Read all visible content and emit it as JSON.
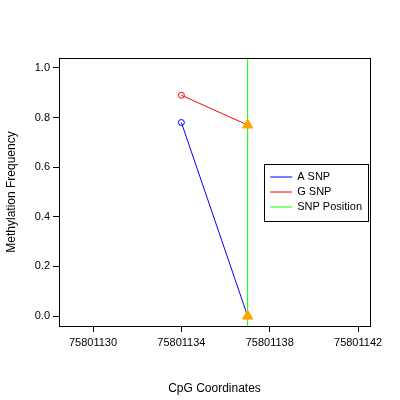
{
  "chart_data": {
    "type": "line",
    "x_label": "CpG Coordinates",
    "y_label": "Methylation Frequency",
    "xlim": [
      75801128.46,
      75801142.54
    ],
    "xticks": [
      75801130,
      75801134,
      75801138,
      75801142
    ],
    "ylim": [
      -0.04,
      1.04
    ],
    "yticks": [
      {
        "value": 0,
        "label": "0.0"
      },
      {
        "value": 0.2,
        "label": "0.2"
      },
      {
        "value": 0.4,
        "label": "0.4"
      },
      {
        "value": 0.6,
        "label": "0.6"
      },
      {
        "value": 0.8,
        "label": "0.8"
      },
      {
        "value": 1,
        "label": "1.0"
      }
    ],
    "grid": false,
    "legend": "right",
    "series": [
      {
        "name": "A SNP",
        "color": "#0000ff",
        "colors": [
          "#0000ff",
          "#ffa500"
        ],
        "marker": "circle",
        "x": [
          75801134,
          75801137
        ],
        "values": [
          0.78,
          0.0
        ]
      },
      {
        "name": "G SNP",
        "color": "#ff0000",
        "colors": [
          "#ff0000",
          "#ffa500"
        ],
        "marker": "circle",
        "x": [
          75801134,
          75801137
        ],
        "values": [
          0.89,
          0.77
        ]
      },
      {
        "name": "SNP Position",
        "type": "vline",
        "color": "#00ff00",
        "marker": "triangle",
        "x": [
          75801137
        ]
      }
    ]
  }
}
